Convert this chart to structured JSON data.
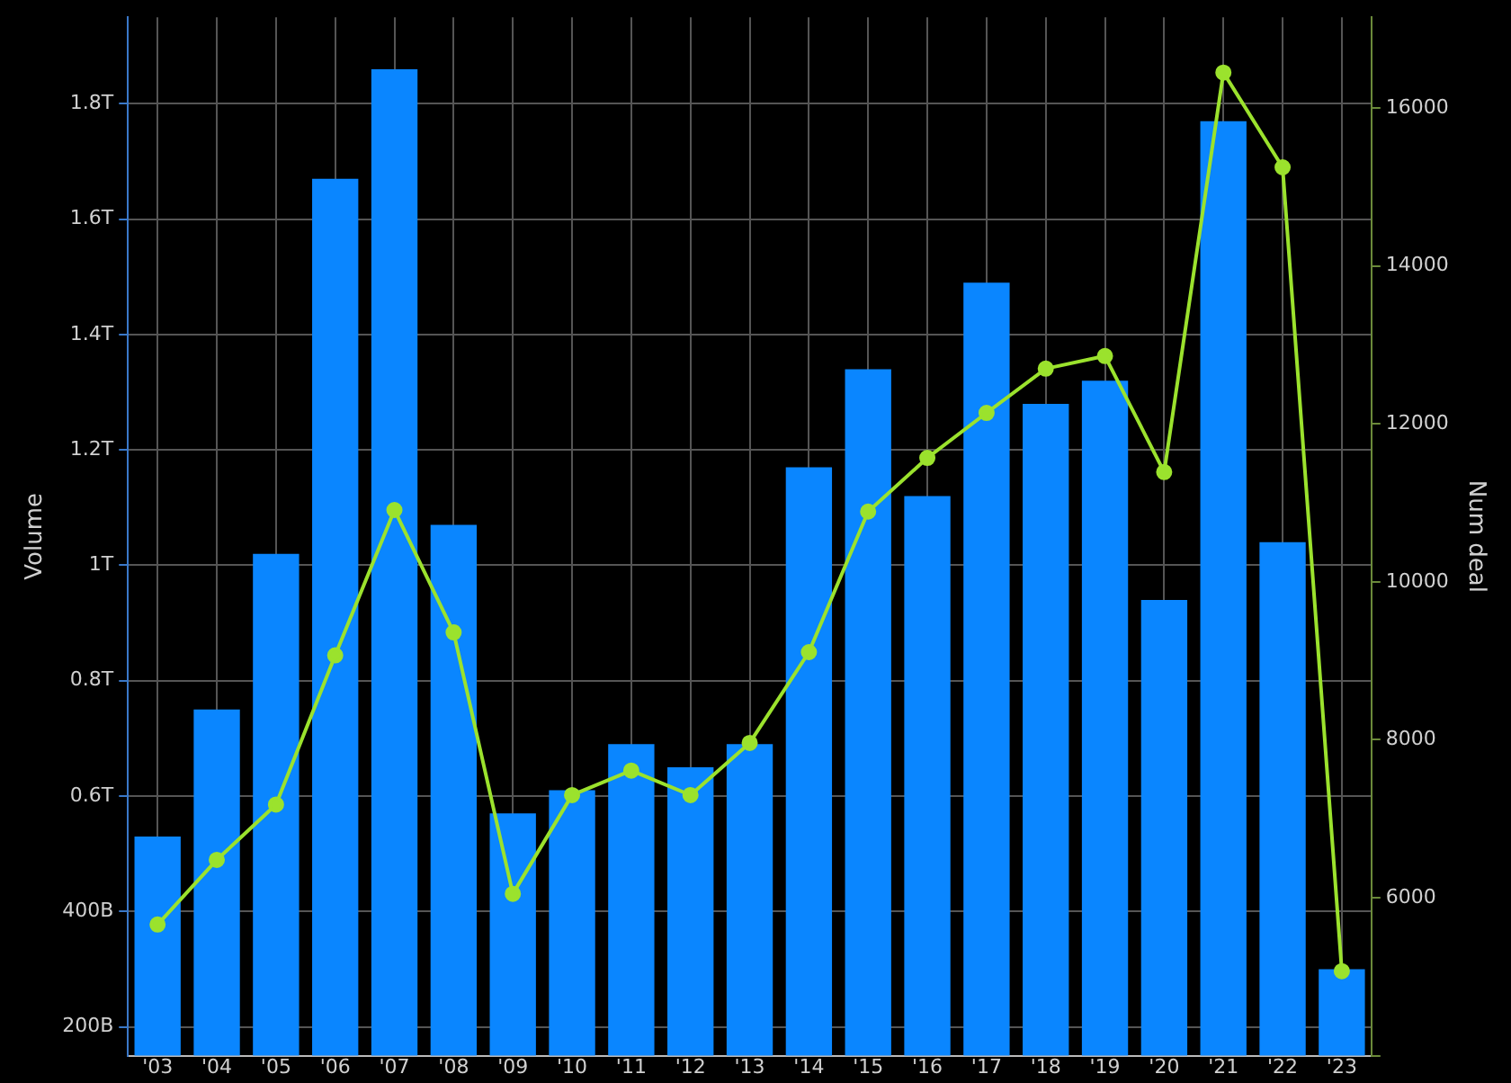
{
  "chart_data": {
    "type": "bar",
    "categories": [
      "'03",
      "'04",
      "'05",
      "'06",
      "'07",
      "'08",
      "'09",
      "'10",
      "'11",
      "'12",
      "'13",
      "'14",
      "'15",
      "'16",
      "'17",
      "'18",
      "'19",
      "'20",
      "'21",
      "'22",
      "'23"
    ],
    "ylabel": "Volume",
    "y2label": "Num deal",
    "series": [
      {
        "color": "#0a86ff",
        "values": [
          530000000000,
          750000000000,
          1020000000000,
          1670000000000,
          1860000000000,
          1070000000000,
          570000000000,
          610000000000,
          690000000000,
          650000000000,
          690000000000,
          1170000000000,
          1340000000000,
          1120000000000,
          1490000000000,
          1280000000000,
          1320000000000,
          940000000000,
          1770000000000,
          1040000000000,
          300000000000
        ]
      },
      {
        "type": "line",
        "axis": "y2",
        "color": "#9be22d",
        "values": [
          5660,
          6480,
          7180,
          9070,
          10910,
          9360,
          6050,
          7300,
          7610,
          7300,
          7960,
          9110,
          10890,
          11570,
          12140,
          12700,
          12860,
          11390,
          16450,
          15250,
          5070
        ]
      }
    ],
    "ylim": [
      150000000000,
      1950000000000
    ],
    "yticks": [
      {
        "value": 200000000000,
        "label": "200B"
      },
      {
        "value": 400000000000,
        "label": "400B"
      },
      {
        "value": 600000000000,
        "label": "0.6T"
      },
      {
        "value": 800000000000,
        "label": "0.8T"
      },
      {
        "value": 1000000000000,
        "label": "1T"
      },
      {
        "value": 1200000000000,
        "label": "1.2T"
      },
      {
        "value": 1400000000000,
        "label": "1.4T"
      },
      {
        "value": 1600000000000,
        "label": "1.6T"
      },
      {
        "value": 1800000000000,
        "label": "1.8T"
      }
    ],
    "y2lim": [
      4000,
      17150
    ],
    "y2ticks": [
      {
        "value": 4000,
        "label": null
      },
      6000,
      8000,
      10000,
      12000,
      14000,
      16000
    ],
    "grid": true,
    "marker": "circle",
    "line_style": "solid"
  }
}
